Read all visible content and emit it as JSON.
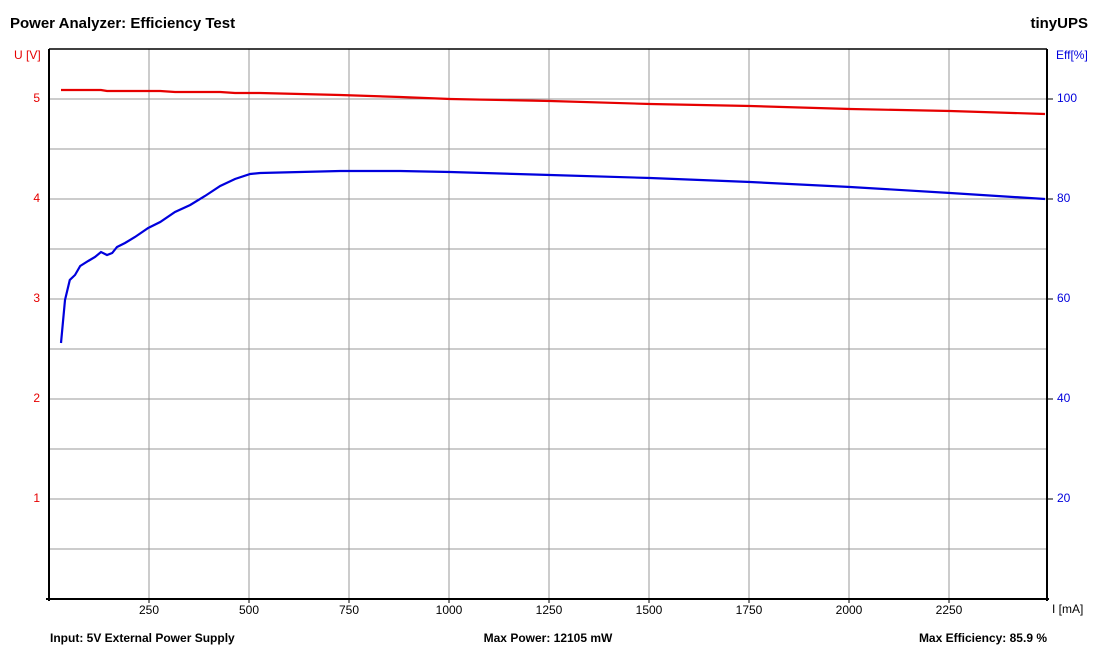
{
  "chart_data": {
    "type": "line",
    "title": "Power Analyzer: Efficiency Test",
    "brand": "tinyUPS",
    "ylabel": "U [V]",
    "y2label": "Eff[%]",
    "xlabel": "I [mA]",
    "footer": [
      "Input: 5V External Power Supply",
      "Max Power: 12105 mW",
      "Max Efficiency: 85.9 %"
    ],
    "x": [
      30,
      40,
      52,
      65,
      78,
      98,
      115,
      130,
      145,
      158,
      170,
      190,
      215,
      248,
      278,
      315,
      353,
      390,
      428,
      465,
      503,
      528,
      628,
      728,
      878,
      1003,
      1253,
      1503,
      1753,
      2003,
      2253,
      2490
    ],
    "series": [
      {
        "name": "U [V]",
        "color": "#e60000",
        "axis": "y",
        "values": [
          5.09,
          5.09,
          5.09,
          5.09,
          5.09,
          5.09,
          5.09,
          5.09,
          5.08,
          5.08,
          5.08,
          5.08,
          5.08,
          5.08,
          5.08,
          5.07,
          5.07,
          5.07,
          5.07,
          5.06,
          5.06,
          5.06,
          5.05,
          5.04,
          5.02,
          5.0,
          4.98,
          4.95,
          4.93,
          4.9,
          4.88,
          4.85
        ]
      },
      {
        "name": "Eff[%]",
        "color": "#0000dd",
        "axis": "y2",
        "values": [
          51.2,
          59.8,
          63.8,
          64.8,
          66.6,
          67.6,
          68.4,
          69.4,
          68.8,
          69.2,
          70.4,
          71.2,
          72.4,
          74.2,
          75.4,
          77.4,
          78.8,
          80.6,
          82.6,
          84,
          85,
          85.2,
          85.4,
          85.6,
          85.6,
          85.4,
          84.8,
          84.2,
          83.4,
          82.4,
          81.2,
          80
        ]
      }
    ],
    "xlim": [
      0,
      2500
    ],
    "xticks": [
      250,
      500,
      750,
      1000,
      1250,
      1500,
      1750,
      2000,
      2250
    ],
    "ylim": [
      0,
      5.5
    ],
    "yticks": [
      1,
      2,
      3,
      4,
      5
    ],
    "y2lim": [
      0,
      110
    ],
    "y2ticks": [
      20,
      40,
      60,
      80,
      100
    ],
    "grid": true
  }
}
